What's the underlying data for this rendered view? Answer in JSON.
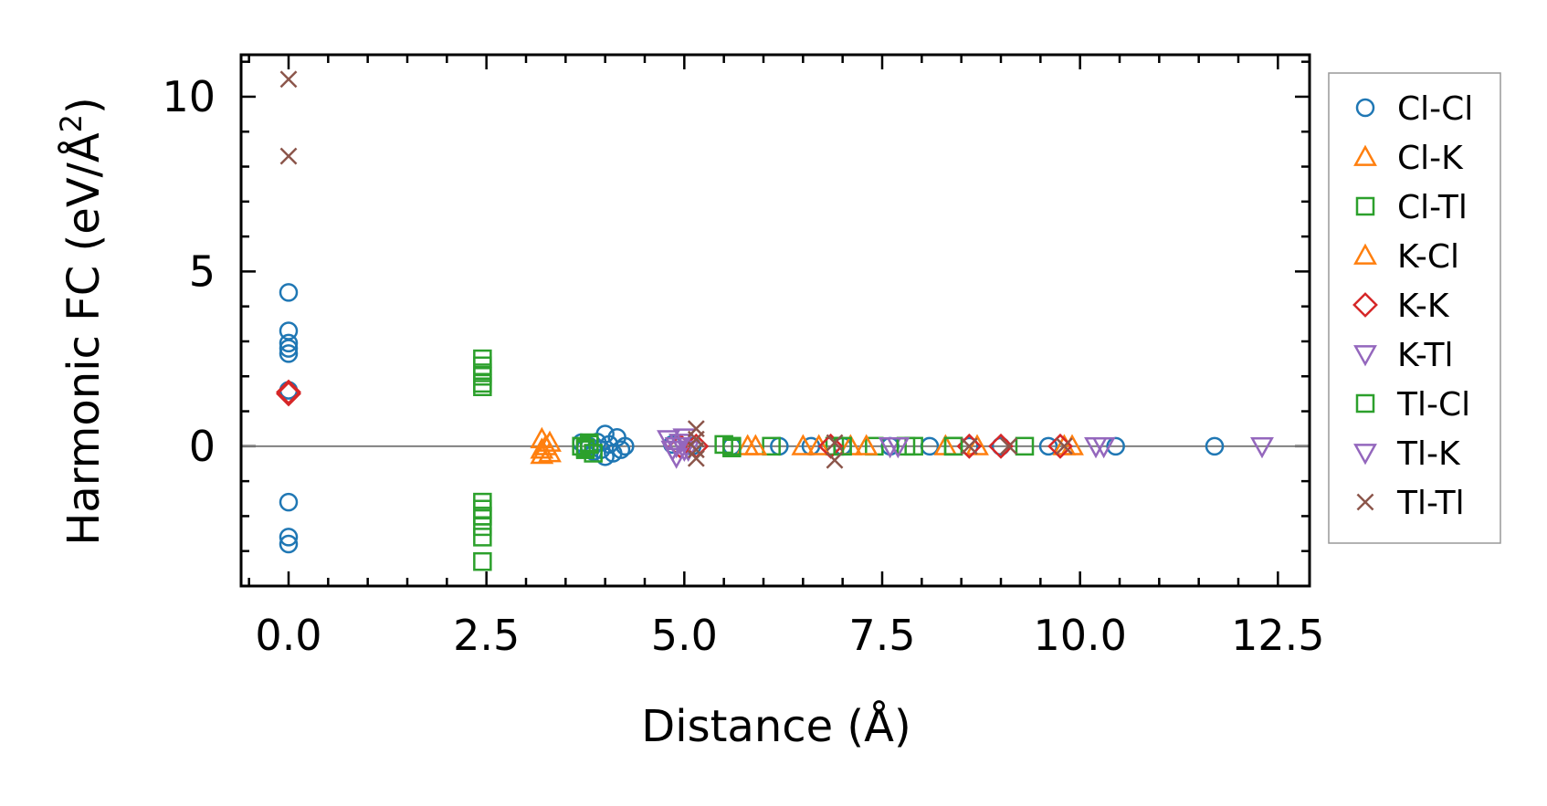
{
  "chart_data": {
    "type": "scatter",
    "title": "",
    "xlabel": "Distance (Å)",
    "ylabel_main": "Harmonic FC (eV/Å",
    "ylabel_sup": "2",
    "ylabel_close": ")",
    "xlim": [
      -0.6,
      12.9
    ],
    "ylim": [
      -4.0,
      11.2
    ],
    "xticks": [
      0.0,
      2.5,
      5.0,
      7.5,
      10.0,
      12.5
    ],
    "xtick_labels": [
      "0.0",
      "2.5",
      "5.0",
      "7.5",
      "10.0",
      "12.5"
    ],
    "yticks": [
      0,
      5,
      10
    ],
    "ytick_labels": [
      "0",
      "5",
      "10"
    ],
    "x_minor_step": 0.5,
    "y_minor_step": 1,
    "zero_line": true,
    "grid": false,
    "legend_position": "outside-right",
    "series": [
      {
        "name": "Cl-Cl",
        "marker": "circle",
        "color": "#1f77b4",
        "points": [
          [
            0,
            4.4
          ],
          [
            0,
            3.3
          ],
          [
            0,
            2.95
          ],
          [
            0,
            2.8
          ],
          [
            0,
            2.65
          ],
          [
            0,
            1.6
          ],
          [
            0,
            -1.6
          ],
          [
            0,
            -2.6
          ],
          [
            0,
            -2.8
          ],
          [
            3.7,
            0.1
          ],
          [
            3.75,
            -0.05
          ],
          [
            3.8,
            0.0
          ],
          [
            3.85,
            -0.15
          ],
          [
            3.9,
            0.12
          ],
          [
            3.95,
            -0.1
          ],
          [
            4.0,
            0.35
          ],
          [
            4.0,
            -0.3
          ],
          [
            4.05,
            0.05
          ],
          [
            4.1,
            -0.2
          ],
          [
            4.15,
            0.25
          ],
          [
            4.2,
            -0.1
          ],
          [
            4.25,
            0.0
          ],
          [
            4.85,
            0.05
          ],
          [
            5.1,
            0.0
          ],
          [
            5.6,
            0.0
          ],
          [
            6.2,
            0.0
          ],
          [
            6.6,
            0.0
          ],
          [
            7.0,
            0.0
          ],
          [
            7.6,
            0.0
          ],
          [
            8.1,
            0.0
          ],
          [
            8.6,
            0.0
          ],
          [
            9.0,
            0.0
          ],
          [
            9.6,
            0.0
          ],
          [
            10.45,
            0.0
          ],
          [
            11.7,
            0.0
          ]
        ]
      },
      {
        "name": "Cl-K",
        "marker": "triangle-up",
        "color": "#ff7f0e",
        "points": [
          [
            3.2,
            0.2
          ],
          [
            3.25,
            0.0
          ],
          [
            3.3,
            -0.2
          ],
          [
            5.8,
            0.0
          ],
          [
            6.5,
            0.0
          ],
          [
            7.1,
            0.0
          ],
          [
            8.3,
            0.0
          ],
          [
            9.9,
            0.0
          ]
        ]
      },
      {
        "name": "Cl-Tl",
        "marker": "square",
        "color": "#2ca02c",
        "points": [
          [
            2.45,
            2.5
          ],
          [
            2.45,
            2.3
          ],
          [
            2.45,
            2.1
          ],
          [
            2.45,
            1.8
          ],
          [
            2.45,
            1.7
          ],
          [
            2.45,
            -1.6
          ],
          [
            2.45,
            -1.8
          ],
          [
            2.45,
            -2.0
          ],
          [
            2.45,
            -2.3
          ],
          [
            2.45,
            -2.6
          ],
          [
            2.45,
            -3.3
          ],
          [
            3.7,
            0.0
          ],
          [
            3.75,
            -0.1
          ],
          [
            3.8,
            0.1
          ],
          [
            3.85,
            -0.2
          ],
          [
            5.5,
            0.05
          ],
          [
            5.6,
            -0.05
          ],
          [
            6.1,
            0.0
          ],
          [
            6.9,
            0.0
          ],
          [
            7.4,
            0.0
          ],
          [
            7.9,
            0.0
          ],
          [
            8.4,
            0.0
          ],
          [
            9.3,
            0.0
          ]
        ]
      },
      {
        "name": "K-Cl",
        "marker": "triangle-up",
        "color": "#ff7f0e",
        "points": [
          [
            3.2,
            -0.1
          ],
          [
            3.3,
            0.1
          ],
          [
            3.2,
            -0.25
          ],
          [
            5.9,
            0.0
          ],
          [
            6.7,
            0.0
          ],
          [
            7.3,
            0.0
          ],
          [
            8.7,
            0.0
          ],
          [
            9.8,
            0.0
          ]
        ]
      },
      {
        "name": "K-K",
        "marker": "diamond",
        "color": "#d62728",
        "points": [
          [
            0,
            1.55
          ],
          [
            0,
            1.5
          ],
          [
            4.95,
            0.0
          ],
          [
            5.15,
            0.0
          ],
          [
            6.85,
            0.0
          ],
          [
            8.6,
            0.0
          ],
          [
            9.0,
            0.0
          ],
          [
            9.75,
            0.0
          ]
        ]
      },
      {
        "name": "K-Tl",
        "marker": "triangle-down",
        "color": "#9467bd",
        "points": [
          [
            4.8,
            0.2
          ],
          [
            4.85,
            -0.1
          ],
          [
            4.9,
            -0.3
          ],
          [
            4.95,
            0.1
          ],
          [
            5.0,
            0.25
          ],
          [
            5.05,
            -0.1
          ],
          [
            7.6,
            0.0
          ],
          [
            10.3,
            0.0
          ],
          [
            12.3,
            0.0
          ]
        ]
      },
      {
        "name": "Tl-Cl",
        "marker": "square",
        "color": "#2ca02c",
        "points": [
          [
            2.45,
            2.0
          ],
          [
            2.45,
            -2.0
          ],
          [
            3.75,
            -0.05
          ],
          [
            3.8,
            0.05
          ],
          [
            5.6,
            0.0
          ],
          [
            7.0,
            0.0
          ],
          [
            7.8,
            0.0
          ],
          [
            8.4,
            0.0
          ]
        ]
      },
      {
        "name": "Tl-K",
        "marker": "triangle-down",
        "color": "#9467bd",
        "points": [
          [
            4.9,
            0.0
          ],
          [
            5.0,
            -0.1
          ],
          [
            7.7,
            0.0
          ],
          [
            10.2,
            0.0
          ]
        ]
      },
      {
        "name": "Tl-Tl",
        "marker": "x",
        "color": "#8c564b",
        "points": [
          [
            0,
            10.5
          ],
          [
            0,
            8.3
          ],
          [
            5.15,
            0.5
          ],
          [
            5.15,
            0.2
          ],
          [
            5.15,
            -0.1
          ],
          [
            5.15,
            -0.35
          ],
          [
            6.9,
            0.1
          ],
          [
            6.9,
            -0.4
          ],
          [
            8.6,
            0.0
          ],
          [
            9.1,
            0.0
          ],
          [
            9.8,
            0.0
          ]
        ]
      }
    ]
  }
}
